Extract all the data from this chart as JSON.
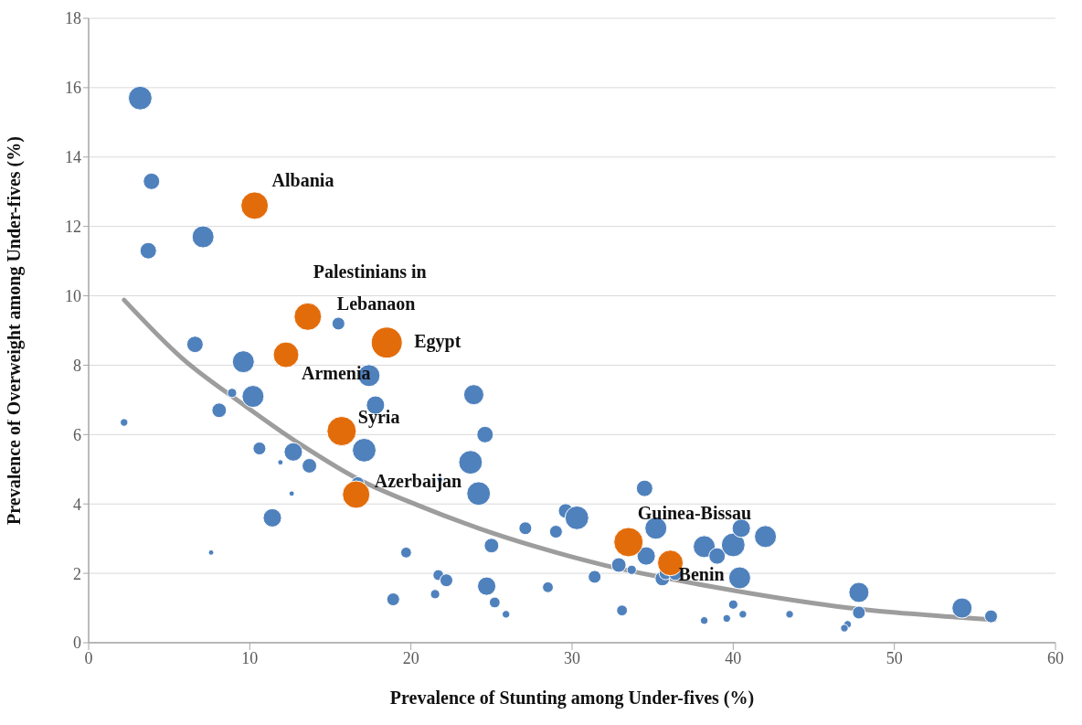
{
  "chart_data": {
    "type": "bubble",
    "xlabel": "Prevalence of Stunting among Under-fives (%)",
    "ylabel": "Prevalence of Overweight among Under-fives (%)",
    "xlim": [
      0,
      60
    ],
    "xticks": [
      0,
      10,
      20,
      30,
      40,
      50,
      60
    ],
    "ylim": [
      0,
      18
    ],
    "yticks": [
      0,
      2,
      4,
      6,
      8,
      10,
      12,
      14,
      16,
      18
    ],
    "grid": "y",
    "legend": false,
    "series": [
      {
        "color": "#4f81bd",
        "x": [
          3.2,
          3.9,
          3.7,
          7.1,
          6.6,
          9.6,
          10.2,
          8.1,
          8.9,
          2.2,
          10.6,
          12.7,
          13.7,
          11.9,
          12.6,
          11.4,
          7.6,
          15.5,
          17.4,
          17.8,
          17.1,
          16.7,
          23.9,
          24.6,
          23.7,
          24.2,
          21.8,
          19.7,
          18.9,
          21.7,
          22.2,
          21.5,
          24.7,
          25.2,
          25.9,
          25.0,
          27.1,
          29.0,
          29.6,
          30.3,
          28.5,
          31.4,
          32.9,
          33.7,
          33.1,
          34.5,
          35.2,
          34.6,
          35.6,
          35.8,
          36.4,
          38.2,
          39.0,
          40.0,
          40.5,
          42.0,
          40.4,
          38.2,
          39.6,
          40.0,
          40.6,
          43.5,
          47.8,
          47.8,
          47.1,
          46.9,
          54.2,
          56.0
        ],
        "values": [
          15.7,
          13.3,
          11.3,
          11.7,
          8.6,
          8.1,
          7.1,
          6.7,
          7.2,
          6.35,
          5.6,
          5.5,
          5.1,
          5.2,
          4.3,
          3.6,
          2.6,
          9.2,
          7.7,
          6.85,
          5.55,
          4.6,
          7.15,
          6.0,
          5.2,
          4.3,
          4.7,
          2.6,
          1.25,
          1.95,
          1.8,
          1.4,
          1.63,
          1.16,
          0.82,
          2.8,
          3.3,
          3.2,
          3.8,
          3.6,
          1.6,
          1.9,
          2.24,
          2.1,
          0.93,
          4.45,
          3.3,
          2.5,
          1.85,
          2.0,
          1.98,
          2.77,
          2.5,
          2.82,
          3.3,
          3.06,
          1.87,
          0.64,
          0.7,
          1.1,
          0.82,
          0.82,
          1.45,
          0.87,
          0.53,
          0.42,
          1.0,
          0.76
        ],
        "sizes": [
          0.58,
          0.28,
          0.28,
          0.5,
          0.28,
          0.5,
          0.5,
          0.22,
          0.09,
          0.06,
          0.17,
          0.35,
          0.22,
          0.03,
          0.03,
          0.35,
          0.03,
          0.17,
          0.5,
          0.35,
          0.58,
          0.17,
          0.42,
          0.28,
          0.58,
          0.58,
          0.03,
          0.12,
          0.17,
          0.12,
          0.17,
          0.09,
          0.35,
          0.12,
          0.06,
          0.22,
          0.17,
          0.17,
          0.22,
          0.58,
          0.12,
          0.17,
          0.22,
          0.09,
          0.12,
          0.28,
          0.5,
          0.35,
          0.22,
          0.17,
          0.17,
          0.5,
          0.28,
          0.58,
          0.35,
          0.5,
          0.5,
          0.06,
          0.06,
          0.09,
          0.06,
          0.06,
          0.42,
          0.17,
          0.06,
          0.06,
          0.42,
          0.17
        ]
      },
      {
        "color": "#e36c0a",
        "x": [
          10.3,
          13.6,
          12.25,
          18.5,
          15.7,
          16.6,
          33.5,
          36.1
        ],
        "values": [
          12.6,
          9.4,
          8.3,
          8.65,
          6.1,
          4.27,
          2.9,
          2.3
        ],
        "sizes": [
          0.78,
          0.78,
          0.68,
          1,
          0.89,
          0.78,
          0.89,
          0.68
        ]
      },
      {
        "type": "line",
        "color": "#8c8c8c",
        "marker": "none",
        "line_style": "solid",
        "x": [
          2.2,
          5.8,
          9.5,
          13.2,
          16.8,
          20.5,
          24.2,
          27.9,
          31.7,
          35.4,
          39.1,
          42.8,
          46.4,
          50.1,
          53.8,
          56.2
        ],
        "values": [
          9.88,
          8.2,
          6.9,
          5.7,
          4.7,
          3.95,
          3.3,
          2.75,
          2.27,
          1.9,
          1.58,
          1.29,
          1.05,
          0.87,
          0.74,
          0.66
        ]
      }
    ],
    "annotations": [
      {
        "text": "Albania",
        "x": 10.3,
        "y": 12.6
      },
      {
        "text": "Palestinians in\nLebanaon",
        "x": 13.6,
        "y": 9.4
      },
      {
        "text": "Armenia",
        "x": 12.25,
        "y": 8.3
      },
      {
        "text": "Egypt",
        "x": 18.5,
        "y": 8.65
      },
      {
        "text": "Syria",
        "x": 15.7,
        "y": 6.1
      },
      {
        "text": "Azerbaijan",
        "x": 16.6,
        "y": 4.27
      },
      {
        "text": "Guinea-Bissau",
        "x": 33.5,
        "y": 2.9
      },
      {
        "text": "Benin",
        "x": 36.1,
        "y": 2.3
      }
    ]
  }
}
